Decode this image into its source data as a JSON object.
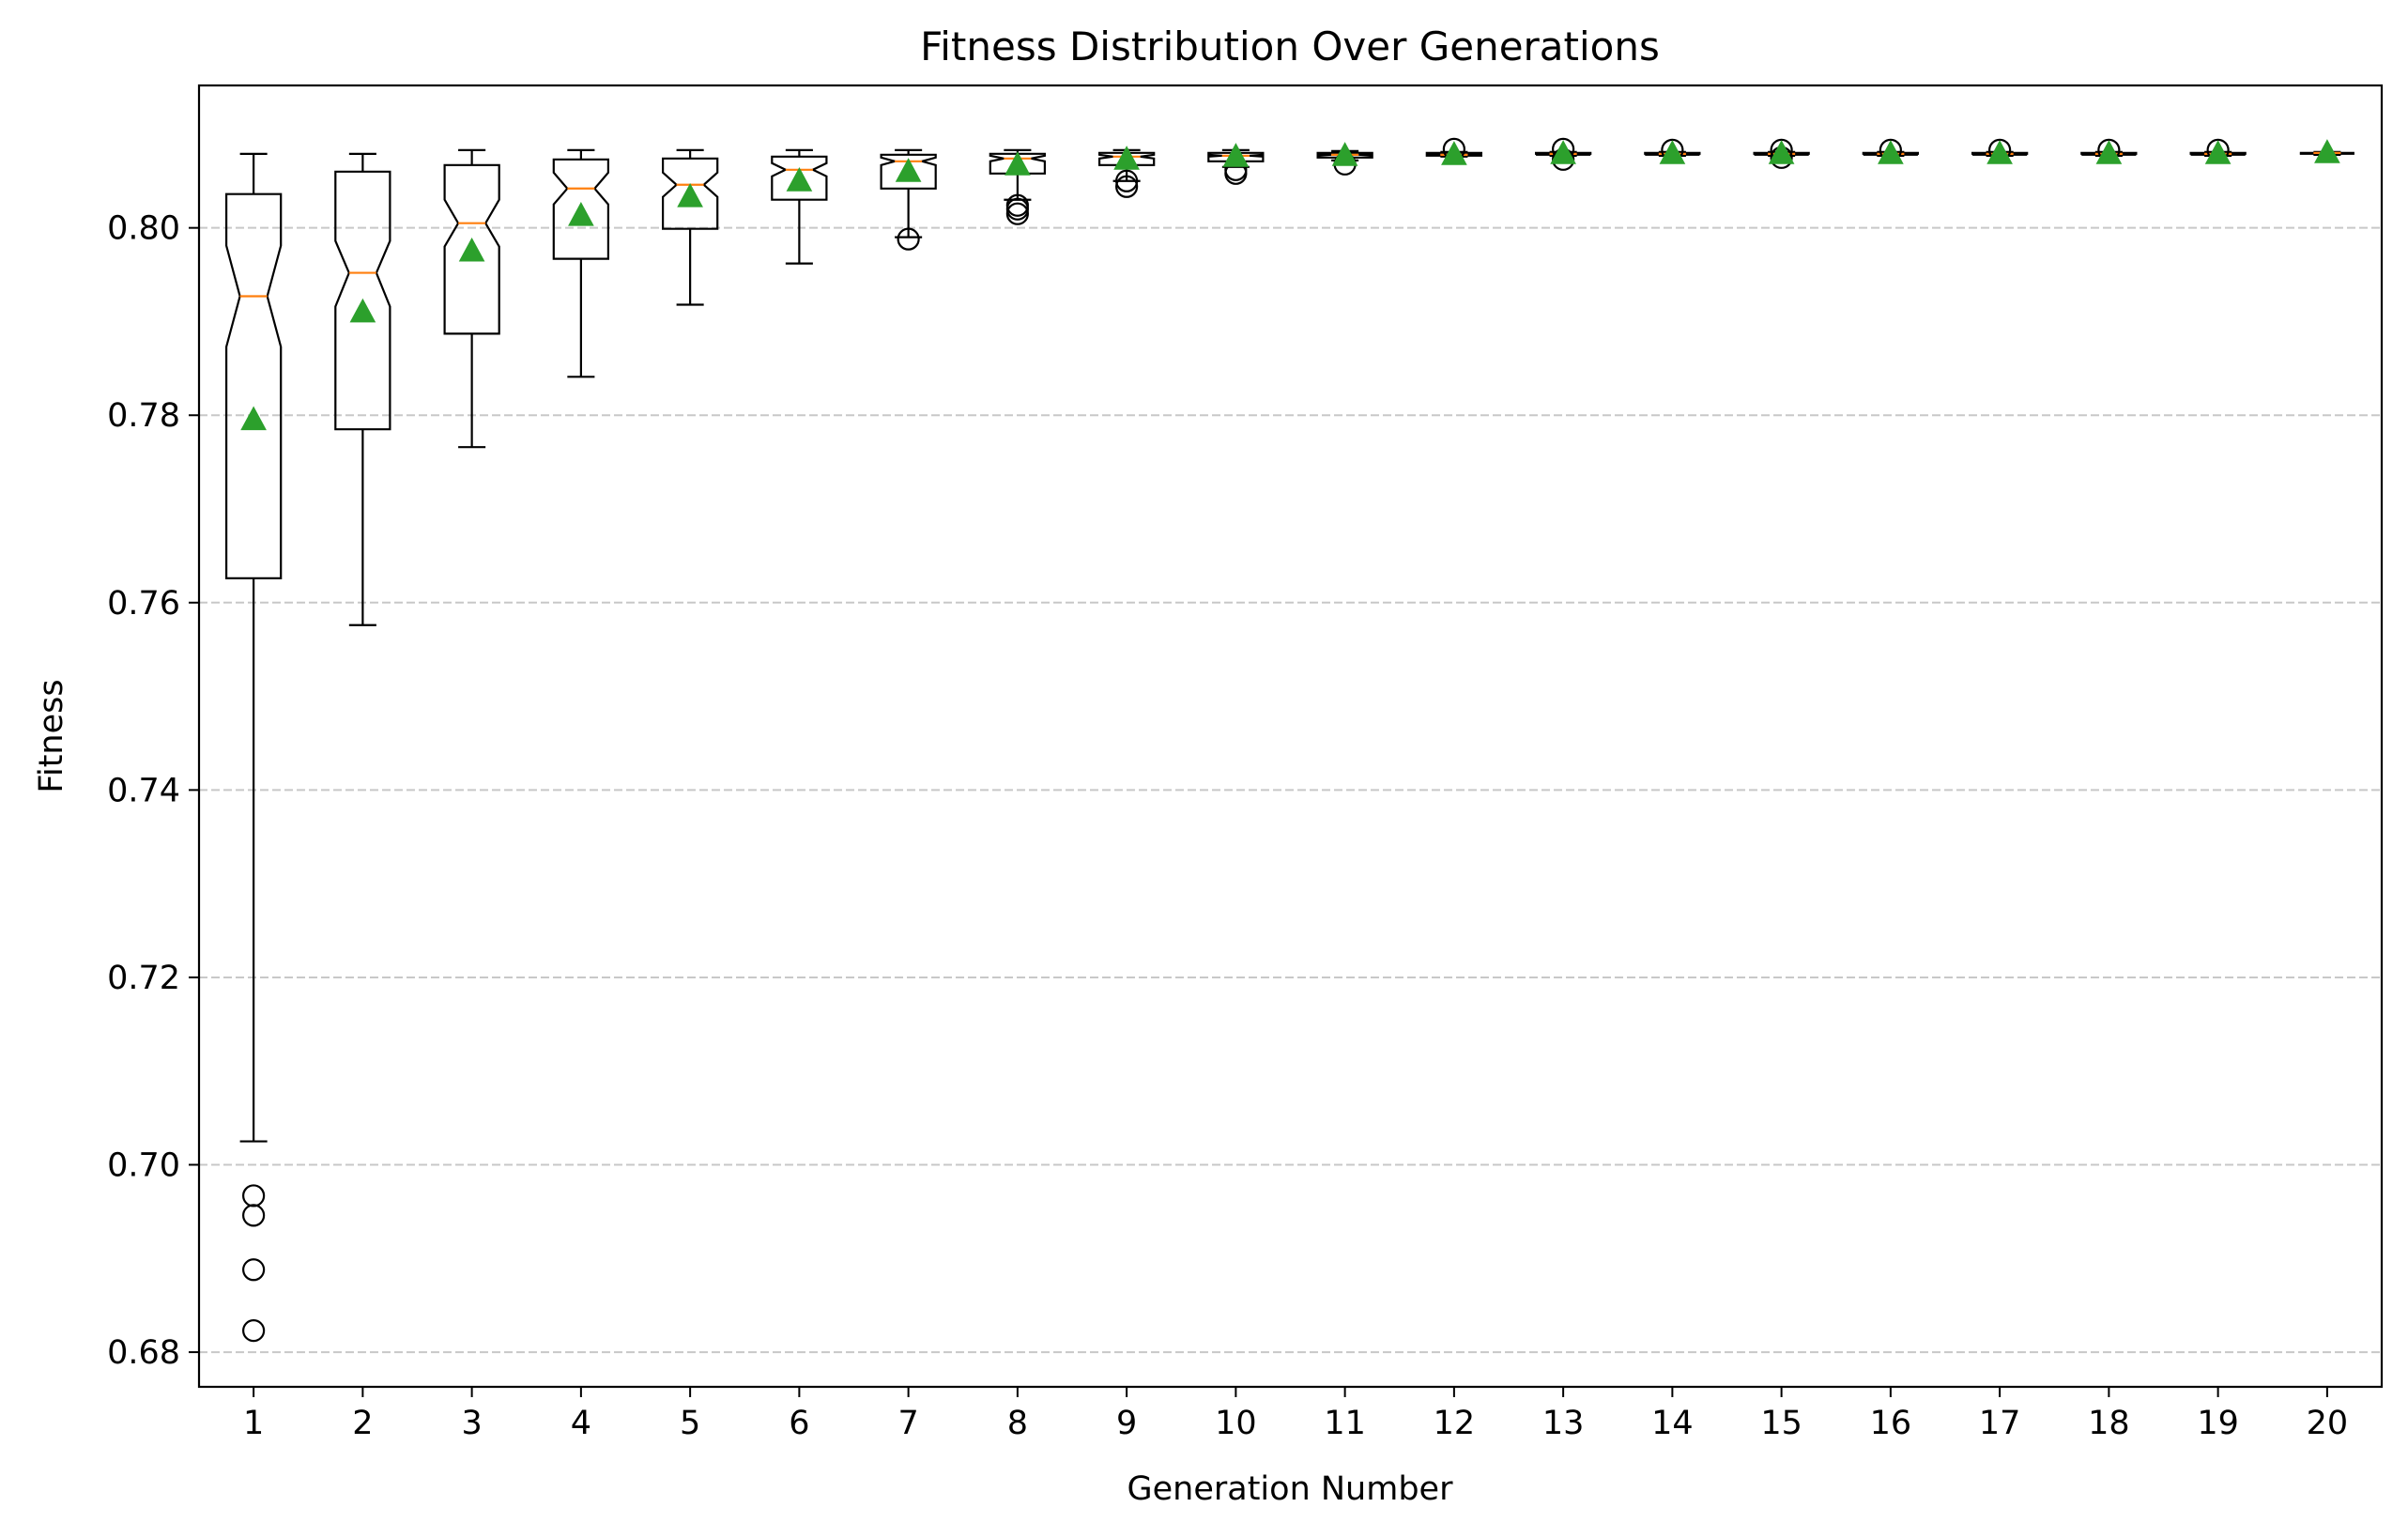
{
  "chart_data": {
    "type": "box",
    "title": "Fitness Distribution Over Generations",
    "xlabel": "Generation Number",
    "ylabel": "Fitness",
    "ylim": [
      0.6763,
      0.8152
    ],
    "yticks": [
      0.68,
      0.7,
      0.72,
      0.74,
      0.76,
      0.78,
      0.8
    ],
    "ytick_labels": [
      "0.68",
      "0.70",
      "0.72",
      "0.74",
      "0.76",
      "0.78",
      "0.80"
    ],
    "grid": "y-dashed",
    "notched": true,
    "show_means": true,
    "colors": {
      "box": "#000000",
      "median": "#ff7f0e",
      "mean": "#2ca02c",
      "grid": "#c8c8c8",
      "flier": "#000000"
    },
    "categories": [
      "1",
      "2",
      "3",
      "4",
      "5",
      "6",
      "7",
      "8",
      "9",
      "10",
      "11",
      "12",
      "13",
      "14",
      "15",
      "16",
      "17",
      "18",
      "19",
      "20"
    ],
    "boxes": [
      {
        "gen": "1",
        "whislo": 0.7025,
        "q1": 0.7626,
        "med": 0.7927,
        "q3": 0.8036,
        "whishi": 0.8079,
        "notch_lo": 0.7873,
        "notch_hi": 0.7981,
        "mean": 0.7795,
        "fliers": [
          0.6967,
          0.6946,
          0.6888,
          0.6823
        ]
      },
      {
        "gen": "2",
        "whislo": 0.7576,
        "q1": 0.7785,
        "med": 0.7952,
        "q3": 0.806,
        "whishi": 0.8079,
        "notch_lo": 0.7916,
        "notch_hi": 0.7986,
        "mean": 0.791,
        "fliers": []
      },
      {
        "gen": "3",
        "whislo": 0.7766,
        "q1": 0.7887,
        "med": 0.8005,
        "q3": 0.8067,
        "whishi": 0.8083,
        "notch_lo": 0.798,
        "notch_hi": 0.803,
        "mean": 0.7975,
        "fliers": []
      },
      {
        "gen": "4",
        "whislo": 0.7841,
        "q1": 0.7967,
        "med": 0.8042,
        "q3": 0.8073,
        "whishi": 0.8083,
        "notch_lo": 0.8025,
        "notch_hi": 0.8059,
        "mean": 0.8013,
        "fliers": []
      },
      {
        "gen": "5",
        "whislo": 0.7918,
        "q1": 0.7999,
        "med": 0.8046,
        "q3": 0.8074,
        "whishi": 0.8083,
        "notch_lo": 0.8033,
        "notch_hi": 0.8059,
        "mean": 0.8033,
        "fliers": []
      },
      {
        "gen": "6",
        "whislo": 0.7962,
        "q1": 0.803,
        "med": 0.8062,
        "q3": 0.8076,
        "whishi": 0.8083,
        "notch_lo": 0.8055,
        "notch_hi": 0.8069,
        "mean": 0.805,
        "fliers": []
      },
      {
        "gen": "7",
        "whislo": 0.799,
        "q1": 0.8042,
        "med": 0.8071,
        "q3": 0.8078,
        "whishi": 0.8083,
        "notch_lo": 0.8067,
        "notch_hi": 0.8075,
        "mean": 0.806,
        "fliers": [
          0.7988
        ]
      },
      {
        "gen": "8",
        "whislo": 0.803,
        "q1": 0.8058,
        "med": 0.8074,
        "q3": 0.8079,
        "whishi": 0.8083,
        "notch_lo": 0.8071,
        "notch_hi": 0.8077,
        "mean": 0.8067,
        "fliers": [
          0.8024,
          0.802,
          0.8015
        ]
      },
      {
        "gen": "9",
        "whislo": 0.805,
        "q1": 0.8067,
        "med": 0.8076,
        "q3": 0.808,
        "whishi": 0.8083,
        "notch_lo": 0.8074,
        "notch_hi": 0.8078,
        "mean": 0.8073,
        "fliers": [
          0.805,
          0.8044
        ]
      },
      {
        "gen": "10",
        "whislo": 0.8065,
        "q1": 0.8071,
        "med": 0.8077,
        "q3": 0.808,
        "whishi": 0.8083,
        "notch_lo": 0.8076,
        "notch_hi": 0.8078,
        "mean": 0.8076,
        "fliers": [
          0.8062,
          0.8058
        ]
      },
      {
        "gen": "11",
        "whislo": 0.8072,
        "q1": 0.8075,
        "med": 0.8078,
        "q3": 0.808,
        "whishi": 0.8082,
        "notch_lo": 0.8077,
        "notch_hi": 0.8079,
        "mean": 0.8077,
        "fliers": [
          0.8068
        ]
      },
      {
        "gen": "12",
        "whislo": 0.8076,
        "q1": 0.8077,
        "med": 0.8078,
        "q3": 0.808,
        "whishi": 0.8081,
        "notch_lo": 0.8078,
        "notch_hi": 0.8079,
        "mean": 0.8078,
        "fliers": [
          0.8084
        ]
      },
      {
        "gen": "13",
        "whislo": 0.8077,
        "q1": 0.8078,
        "med": 0.8079,
        "q3": 0.808,
        "whishi": 0.8081,
        "notch_lo": 0.8078,
        "notch_hi": 0.8079,
        "mean": 0.8079,
        "fliers": [
          0.8084,
          0.8073
        ]
      },
      {
        "gen": "14",
        "whislo": 0.8077,
        "q1": 0.8078,
        "med": 0.8079,
        "q3": 0.808,
        "whishi": 0.8081,
        "notch_lo": 0.8078,
        "notch_hi": 0.8079,
        "mean": 0.8079,
        "fliers": [
          0.8083
        ]
      },
      {
        "gen": "15",
        "whislo": 0.8077,
        "q1": 0.8078,
        "med": 0.8079,
        "q3": 0.808,
        "whishi": 0.8081,
        "notch_lo": 0.8078,
        "notch_hi": 0.8079,
        "mean": 0.8079,
        "fliers": [
          0.8083,
          0.8075
        ]
      },
      {
        "gen": "16",
        "whislo": 0.8077,
        "q1": 0.8078,
        "med": 0.8079,
        "q3": 0.808,
        "whishi": 0.8081,
        "notch_lo": 0.8078,
        "notch_hi": 0.8079,
        "mean": 0.8079,
        "fliers": [
          0.8083
        ]
      },
      {
        "gen": "17",
        "whislo": 0.8077,
        "q1": 0.8078,
        "med": 0.8079,
        "q3": 0.808,
        "whishi": 0.8081,
        "notch_lo": 0.8078,
        "notch_hi": 0.8079,
        "mean": 0.8079,
        "fliers": [
          0.8083
        ]
      },
      {
        "gen": "18",
        "whislo": 0.8077,
        "q1": 0.8078,
        "med": 0.8079,
        "q3": 0.808,
        "whishi": 0.8081,
        "notch_lo": 0.8078,
        "notch_hi": 0.8079,
        "mean": 0.8079,
        "fliers": [
          0.8083
        ]
      },
      {
        "gen": "19",
        "whislo": 0.8077,
        "q1": 0.8078,
        "med": 0.8079,
        "q3": 0.808,
        "whishi": 0.8081,
        "notch_lo": 0.8078,
        "notch_hi": 0.8079,
        "mean": 0.8079,
        "fliers": [
          0.8083
        ]
      },
      {
        "gen": "20",
        "whislo": 0.8078,
        "q1": 0.8079,
        "med": 0.808,
        "q3": 0.808,
        "whishi": 0.8081,
        "notch_lo": 0.8079,
        "notch_hi": 0.808,
        "mean": 0.808,
        "fliers": []
      }
    ]
  }
}
